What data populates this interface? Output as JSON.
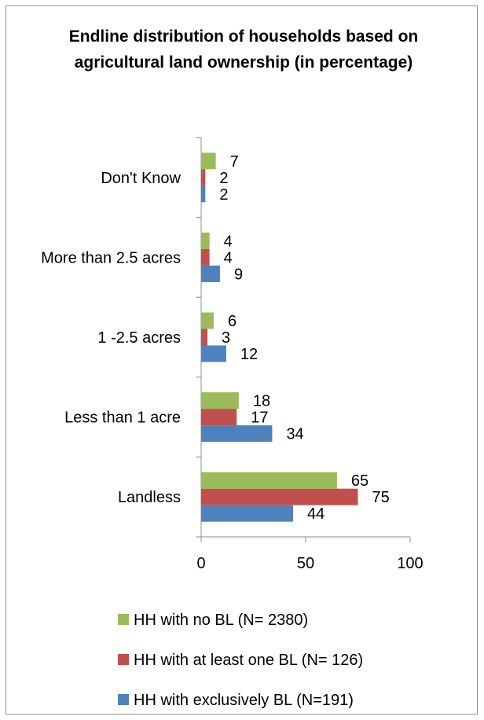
{
  "chart_data": {
    "type": "bar",
    "orientation": "horizontal",
    "title": "Endline distribution of households based on agricultural land ownership (in percentage)",
    "categories": [
      "Landless",
      "Less than 1 acre",
      "1 -2.5 acres",
      "More than 2.5 acres",
      "Don't Know"
    ],
    "series": [
      {
        "name": "HH with exclusively BL (N=191)",
        "color": "#4F81BD",
        "values": [
          44,
          34,
          12,
          9,
          2
        ]
      },
      {
        "name": "HH with at least one BL (N= 126)",
        "color": "#C0504D",
        "values": [
          75,
          17,
          3,
          4,
          2
        ]
      },
      {
        "name": "HH with no BL (N= 2380)",
        "color": "#9BBB59",
        "values": [
          65,
          18,
          6,
          4,
          7
        ]
      }
    ],
    "xlim": [
      0,
      100
    ],
    "xticks": [
      0,
      50,
      100
    ],
    "xlabel": "",
    "ylabel": "",
    "grid": false,
    "legend_position": "bottom",
    "legend_order": [
      2,
      1,
      0
    ]
  }
}
